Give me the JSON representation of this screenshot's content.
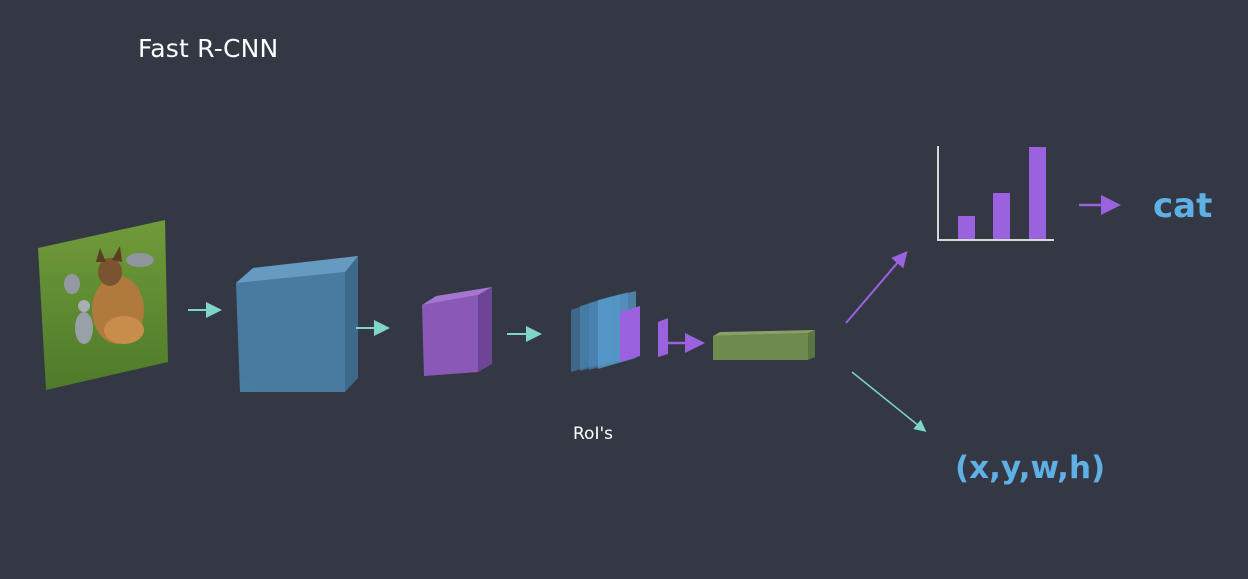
{
  "title": "Fast R-CNN",
  "rois_label": "RoI's",
  "class_output": "cat",
  "bbox_output": "(x,y,w,h)",
  "colors": {
    "background": "#333844",
    "teal_arrow": "#7fd6c8",
    "purple": "#9b62e0",
    "blue_text": "#5fb0e4",
    "conv_block": "#4b7fa6",
    "feature_map": "#8a59b8",
    "fc_block": "#6f8a4e"
  },
  "icons": [
    "input-image",
    "conv-layers-block",
    "feature-map-block",
    "roi-stack",
    "roi-pooled",
    "fc-layers-block",
    "softmax-bar-chart"
  ],
  "chart_data": {
    "type": "bar",
    "categories": [
      "",
      "",
      ""
    ],
    "values": [
      1,
      2,
      4
    ]
  }
}
